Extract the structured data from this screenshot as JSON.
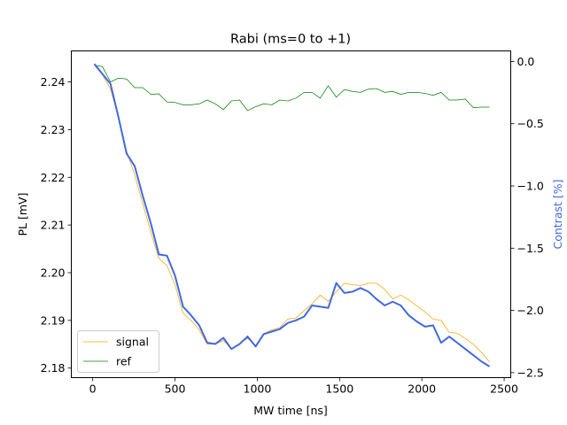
{
  "chart_data": {
    "type": "line",
    "title": "Rabi (ms=0 to +1)",
    "xlabel": "MW time [ns]",
    "ylabel": "PL [mV]",
    "y2label": "Contrast [%]",
    "xlim": [
      -130,
      2540
    ],
    "ylim": [
      2.178,
      2.2465
    ],
    "y2lim": [
      -2.54,
      0.085
    ],
    "xticks": [
      0,
      500,
      1000,
      1500,
      2000,
      2500
    ],
    "yticks": [
      2.18,
      2.19,
      2.2,
      2.21,
      2.22,
      2.23,
      2.24
    ],
    "ytick_labels": [
      "2.18",
      "2.19",
      "2.20",
      "2.21",
      "2.22",
      "2.23",
      "2.24"
    ],
    "y2ticks": [
      0.0,
      -0.5,
      -1.0,
      -1.5,
      -2.0,
      -2.5
    ],
    "y2tick_labels": [
      "0.0",
      "−0.5",
      "−1.0",
      "−1.5",
      "−2.0",
      "−2.5"
    ],
    "grid": false,
    "legend_position": "lower-left",
    "x": [
      10,
      59,
      108,
      157,
      206,
      255,
      304,
      353,
      402,
      451,
      500,
      549,
      598,
      647,
      696,
      745,
      794,
      843,
      892,
      941,
      990,
      1039,
      1088,
      1137,
      1186,
      1235,
      1284,
      1333,
      1382,
      1431,
      1480,
      1529,
      1578,
      1627,
      1676,
      1725,
      1774,
      1823,
      1872,
      1921,
      1970,
      2019,
      2068,
      2117,
      2166,
      2215,
      2264,
      2313,
      2362,
      2411
    ],
    "series": [
      {
        "name": "signal",
        "axis": "left",
        "color": "#ffa500",
        "values": [
          2.2435,
          2.2415,
          2.2385,
          2.2325,
          2.2255,
          2.2205,
          2.2145,
          2.2085,
          2.203,
          2.2015,
          2.1975,
          2.1915,
          2.19,
          2.188,
          2.185,
          2.185,
          2.1858,
          2.184,
          2.1852,
          2.1862,
          2.1848,
          2.1872,
          2.188,
          2.1885,
          2.1903,
          2.1905,
          2.192,
          2.1935,
          2.1953,
          2.194,
          2.196,
          2.1978,
          2.1975,
          2.1973,
          2.1978,
          2.1978,
          2.1965,
          2.1945,
          2.1953,
          2.1943,
          2.193,
          2.1918,
          2.1903,
          2.19,
          2.1875,
          2.1873,
          2.1862,
          2.185,
          2.1833,
          2.1813
        ]
      },
      {
        "name": "ref",
        "axis": "left",
        "color": "#008000",
        "values": [
          2.2435,
          2.2432,
          2.24,
          2.2408,
          2.2406,
          2.2388,
          2.2388,
          2.2374,
          2.2375,
          2.2358,
          2.2357,
          2.2352,
          2.2352,
          2.2354,
          2.2362,
          2.2354,
          2.2342,
          2.236,
          2.2362,
          2.234,
          2.2348,
          2.2354,
          2.2352,
          2.2362,
          2.236,
          2.2366,
          2.2378,
          2.2378,
          2.2366,
          2.2392,
          2.2368,
          2.2384,
          2.238,
          2.2378,
          2.2385,
          2.2386,
          2.2378,
          2.238,
          2.2374,
          2.2378,
          2.2378,
          2.2376,
          2.2372,
          2.2378,
          2.2362,
          2.2362,
          2.2364,
          2.2346,
          2.2347,
          2.2347
        ]
      },
      {
        "name": "contrast",
        "axis": "right",
        "color": "#4169e1",
        "values": [
          -0.02,
          -0.1,
          -0.18,
          -0.45,
          -0.74,
          -0.84,
          -1.08,
          -1.3,
          -1.55,
          -1.56,
          -1.72,
          -1.97,
          -2.04,
          -2.12,
          -2.26,
          -2.27,
          -2.22,
          -2.31,
          -2.27,
          -2.21,
          -2.29,
          -2.19,
          -2.17,
          -2.15,
          -2.1,
          -2.08,
          -2.05,
          -1.96,
          -1.97,
          -1.98,
          -1.78,
          -1.86,
          -1.85,
          -1.82,
          -1.85,
          -1.91,
          -1.96,
          -1.93,
          -1.96,
          -2.04,
          -2.09,
          -2.13,
          -2.12,
          -2.26,
          -2.21,
          -2.26,
          -2.31,
          -2.36,
          -2.41,
          -2.45
        ]
      }
    ]
  }
}
